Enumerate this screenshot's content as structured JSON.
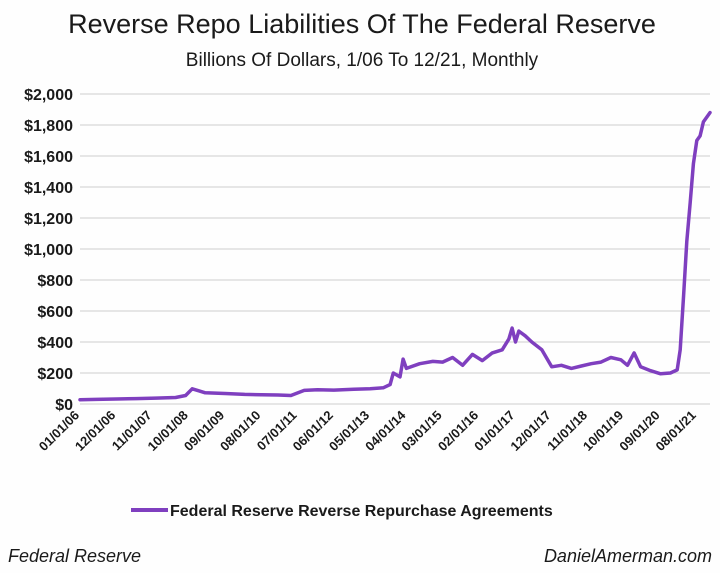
{
  "chart_data": {
    "type": "line",
    "title": "Reverse Repo Liabilities Of The Federal Reserve",
    "subtitle": "Billions Of Dollars, 1/06 To 12/21, Monthly",
    "ylim": [
      0,
      2000
    ],
    "xlim": [
      "2006-01-01",
      "2021-12-01"
    ],
    "y_ticks": [
      {
        "value": 0,
        "label": "$0"
      },
      {
        "value": 200,
        "label": "$200"
      },
      {
        "value": 400,
        "label": "$400"
      },
      {
        "value": 600,
        "label": "$600"
      },
      {
        "value": 800,
        "label": "$800"
      },
      {
        "value": 1000,
        "label": "$1,000"
      },
      {
        "value": 1200,
        "label": "$1,200"
      },
      {
        "value": 1400,
        "label": "$1,400"
      },
      {
        "value": 1600,
        "label": "$1,600"
      },
      {
        "value": 1800,
        "label": "$1,800"
      },
      {
        "value": 2000,
        "label": "$2,000"
      }
    ],
    "x_ticks": [
      {
        "date": "2006-01-01",
        "label": "01/01/06"
      },
      {
        "date": "2006-12-01",
        "label": "12/01/06"
      },
      {
        "date": "2007-11-01",
        "label": "11/01/07"
      },
      {
        "date": "2008-10-01",
        "label": "10/01/08"
      },
      {
        "date": "2009-09-01",
        "label": "09/01/09"
      },
      {
        "date": "2010-08-01",
        "label": "08/01/10"
      },
      {
        "date": "2011-07-01",
        "label": "07/01/11"
      },
      {
        "date": "2012-06-01",
        "label": "06/01/12"
      },
      {
        "date": "2013-05-01",
        "label": "05/01/13"
      },
      {
        "date": "2014-04-01",
        "label": "04/01/14"
      },
      {
        "date": "2015-03-01",
        "label": "03/01/15"
      },
      {
        "date": "2016-02-01",
        "label": "02/01/16"
      },
      {
        "date": "2017-01-01",
        "label": "01/01/17"
      },
      {
        "date": "2017-12-01",
        "label": "12/01/17"
      },
      {
        "date": "2018-11-01",
        "label": "11/01/18"
      },
      {
        "date": "2019-10-01",
        "label": "10/01/19"
      },
      {
        "date": "2020-09-01",
        "label": "09/01/20"
      },
      {
        "date": "2021-08-01",
        "label": "08/01/21"
      }
    ],
    "grid": true,
    "legend_position": "bottom-center",
    "series": [
      {
        "name": "Federal Reserve Reverse Repurchase Agreements",
        "color": "#7f3fbf",
        "points": [
          [
            "2006-01-01",
            28
          ],
          [
            "2006-06-01",
            30
          ],
          [
            "2006-12-01",
            32
          ],
          [
            "2007-06-01",
            35
          ],
          [
            "2007-12-01",
            38
          ],
          [
            "2008-06-01",
            42
          ],
          [
            "2008-09-01",
            55
          ],
          [
            "2008-11-01",
            98
          ],
          [
            "2009-01-01",
            85
          ],
          [
            "2009-03-01",
            72
          ],
          [
            "2009-09-01",
            68
          ],
          [
            "2010-03-01",
            62
          ],
          [
            "2010-08-01",
            60
          ],
          [
            "2011-01-01",
            58
          ],
          [
            "2011-05-01",
            55
          ],
          [
            "2011-09-01",
            88
          ],
          [
            "2012-01-01",
            92
          ],
          [
            "2012-06-01",
            90
          ],
          [
            "2012-12-01",
            95
          ],
          [
            "2013-05-01",
            98
          ],
          [
            "2013-09-01",
            105
          ],
          [
            "2013-11-01",
            125
          ],
          [
            "2013-12-01",
            200
          ],
          [
            "2014-02-01",
            175
          ],
          [
            "2014-03-01",
            290
          ],
          [
            "2014-04-01",
            230
          ],
          [
            "2014-08-01",
            260
          ],
          [
            "2014-12-01",
            275
          ],
          [
            "2015-03-01",
            270
          ],
          [
            "2015-06-01",
            300
          ],
          [
            "2015-09-01",
            250
          ],
          [
            "2015-12-01",
            320
          ],
          [
            "2016-03-01",
            280
          ],
          [
            "2016-06-01",
            330
          ],
          [
            "2016-09-01",
            350
          ],
          [
            "2016-11-01",
            420
          ],
          [
            "2016-12-01",
            490
          ],
          [
            "2017-01-01",
            400
          ],
          [
            "2017-02-01",
            470
          ],
          [
            "2017-04-01",
            440
          ],
          [
            "2017-06-01",
            400
          ],
          [
            "2017-09-01",
            350
          ],
          [
            "2017-12-01",
            240
          ],
          [
            "2018-03-01",
            250
          ],
          [
            "2018-06-01",
            230
          ],
          [
            "2018-09-01",
            245
          ],
          [
            "2018-12-01",
            260
          ],
          [
            "2019-03-01",
            270
          ],
          [
            "2019-06-01",
            300
          ],
          [
            "2019-09-01",
            285
          ],
          [
            "2019-11-01",
            250
          ],
          [
            "2020-01-01",
            330
          ],
          [
            "2020-03-01",
            240
          ],
          [
            "2020-06-01",
            215
          ],
          [
            "2020-09-01",
            195
          ],
          [
            "2020-12-01",
            200
          ],
          [
            "2021-02-01",
            220
          ],
          [
            "2021-03-01",
            350
          ],
          [
            "2021-04-01",
            700
          ],
          [
            "2021-05-01",
            1050
          ],
          [
            "2021-06-01",
            1300
          ],
          [
            "2021-07-01",
            1550
          ],
          [
            "2021-08-01",
            1700
          ],
          [
            "2021-09-01",
            1730
          ],
          [
            "2021-10-01",
            1820
          ],
          [
            "2021-12-01",
            1880
          ]
        ]
      }
    ]
  },
  "footer": {
    "source": "Federal Reserve",
    "credit": "DanielAmerman.com"
  }
}
